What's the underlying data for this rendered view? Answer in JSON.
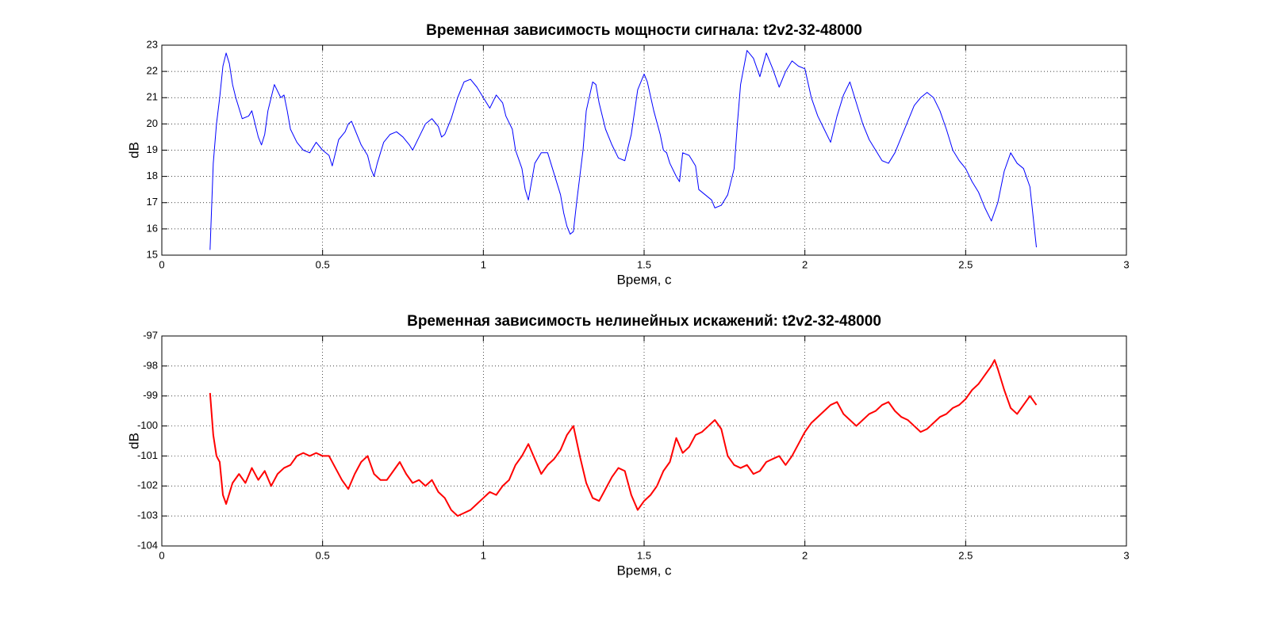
{
  "chart_data": [
    {
      "type": "line",
      "title": "Временная зависимость мощности сигнала: t2v2-32-48000",
      "xlabel": "Время, с",
      "ylabel": "dB",
      "color": "#0000ff",
      "grid": true,
      "xlim": [
        0,
        3
      ],
      "xticks": [
        0,
        0.5,
        1,
        1.5,
        2,
        2.5,
        3
      ],
      "ylim": [
        15,
        23
      ],
      "yticks": [
        15,
        16,
        17,
        18,
        19,
        20,
        21,
        22,
        23
      ],
      "x": [
        0.15,
        0.16,
        0.17,
        0.18,
        0.19,
        0.2,
        0.21,
        0.22,
        0.23,
        0.24,
        0.25,
        0.27,
        0.28,
        0.29,
        0.3,
        0.31,
        0.32,
        0.33,
        0.35,
        0.37,
        0.38,
        0.39,
        0.4,
        0.42,
        0.44,
        0.46,
        0.48,
        0.5,
        0.52,
        0.53,
        0.54,
        0.55,
        0.57,
        0.58,
        0.59,
        0.6,
        0.62,
        0.64,
        0.65,
        0.66,
        0.67,
        0.69,
        0.71,
        0.73,
        0.75,
        0.77,
        0.78,
        0.8,
        0.82,
        0.84,
        0.86,
        0.87,
        0.88,
        0.9,
        0.92,
        0.94,
        0.96,
        0.98,
        1.0,
        1.02,
        1.04,
        1.06,
        1.07,
        1.09,
        1.1,
        1.12,
        1.13,
        1.14,
        1.15,
        1.16,
        1.18,
        1.2,
        1.22,
        1.24,
        1.25,
        1.26,
        1.27,
        1.28,
        1.29,
        1.31,
        1.32,
        1.34,
        1.35,
        1.36,
        1.38,
        1.4,
        1.42,
        1.44,
        1.46,
        1.48,
        1.5,
        1.51,
        1.53,
        1.55,
        1.56,
        1.57,
        1.58,
        1.6,
        1.61,
        1.62,
        1.64,
        1.66,
        1.67,
        1.69,
        1.71,
        1.72,
        1.74,
        1.76,
        1.78,
        1.79,
        1.8,
        1.82,
        1.84,
        1.86,
        1.88,
        1.9,
        1.92,
        1.94,
        1.96,
        1.98,
        2.0,
        2.02,
        2.04,
        2.06,
        2.08,
        2.1,
        2.12,
        2.14,
        2.16,
        2.18,
        2.2,
        2.22,
        2.24,
        2.26,
        2.28,
        2.3,
        2.32,
        2.34,
        2.36,
        2.38,
        2.4,
        2.42,
        2.44,
        2.46,
        2.48,
        2.5,
        2.52,
        2.54,
        2.56,
        2.58,
        2.6,
        2.62,
        2.64,
        2.66,
        2.68,
        2.7,
        2.72
      ],
      "values": [
        15.2,
        18.5,
        20.0,
        21.0,
        22.2,
        22.7,
        22.3,
        21.5,
        21.0,
        20.6,
        20.2,
        20.3,
        20.5,
        20.0,
        19.5,
        19.2,
        19.6,
        20.5,
        21.5,
        21.0,
        21.1,
        20.5,
        19.8,
        19.3,
        19.0,
        18.9,
        19.3,
        19.0,
        18.8,
        18.4,
        18.9,
        19.4,
        19.7,
        20.0,
        20.1,
        19.8,
        19.2,
        18.8,
        18.3,
        18.0,
        18.5,
        19.3,
        19.6,
        19.7,
        19.5,
        19.2,
        19.0,
        19.5,
        20.0,
        20.2,
        19.9,
        19.5,
        19.6,
        20.2,
        21.0,
        21.6,
        21.7,
        21.4,
        21.0,
        20.6,
        21.1,
        20.8,
        20.3,
        19.8,
        19.0,
        18.3,
        17.5,
        17.1,
        17.8,
        18.5,
        18.9,
        18.9,
        18.1,
        17.3,
        16.6,
        16.1,
        15.8,
        15.9,
        17.0,
        19.0,
        20.5,
        21.6,
        21.5,
        20.8,
        19.8,
        19.2,
        18.7,
        18.6,
        19.6,
        21.3,
        21.9,
        21.6,
        20.5,
        19.6,
        19.0,
        18.9,
        18.5,
        18.0,
        17.8,
        18.9,
        18.8,
        18.4,
        17.5,
        17.3,
        17.1,
        16.8,
        16.9,
        17.3,
        18.3,
        20.0,
        21.5,
        22.8,
        22.5,
        21.8,
        22.7,
        22.1,
        21.4,
        22.0,
        22.4,
        22.2,
        22.1,
        21.0,
        20.3,
        19.8,
        19.3,
        20.3,
        21.1,
        21.6,
        20.8,
        20.0,
        19.4,
        19.0,
        18.6,
        18.5,
        18.9,
        19.5,
        20.1,
        20.7,
        21.0,
        21.2,
        21.0,
        20.5,
        19.8,
        19.0,
        18.6,
        18.3,
        17.8,
        17.4,
        16.8,
        16.3,
        17.0,
        18.2,
        18.9,
        18.5,
        18.3,
        17.6,
        15.3
      ]
    },
    {
      "type": "line",
      "title": "Временная зависимость нелинейных искажений: t2v2-32-48000",
      "xlabel": "Время, с",
      "ylabel": "dB",
      "color": "#ff0000",
      "grid": true,
      "xlim": [
        0,
        3
      ],
      "xticks": [
        0,
        0.5,
        1,
        1.5,
        2,
        2.5,
        3
      ],
      "ylim": [
        -104,
        -97
      ],
      "yticks": [
        -104,
        -103,
        -102,
        -101,
        -100,
        -99,
        -98,
        -97
      ],
      "x": [
        0.15,
        0.16,
        0.17,
        0.18,
        0.19,
        0.2,
        0.22,
        0.24,
        0.26,
        0.28,
        0.3,
        0.32,
        0.34,
        0.36,
        0.38,
        0.4,
        0.42,
        0.44,
        0.46,
        0.48,
        0.5,
        0.52,
        0.54,
        0.56,
        0.58,
        0.6,
        0.62,
        0.64,
        0.66,
        0.68,
        0.7,
        0.72,
        0.74,
        0.76,
        0.78,
        0.8,
        0.82,
        0.84,
        0.86,
        0.88,
        0.9,
        0.92,
        0.94,
        0.96,
        0.98,
        1.0,
        1.02,
        1.04,
        1.06,
        1.08,
        1.1,
        1.12,
        1.14,
        1.16,
        1.18,
        1.2,
        1.22,
        1.24,
        1.26,
        1.28,
        1.3,
        1.32,
        1.34,
        1.36,
        1.38,
        1.4,
        1.42,
        1.44,
        1.46,
        1.48,
        1.5,
        1.52,
        1.54,
        1.56,
        1.58,
        1.6,
        1.62,
        1.64,
        1.66,
        1.68,
        1.7,
        1.72,
        1.74,
        1.76,
        1.78,
        1.8,
        1.82,
        1.84,
        1.86,
        1.88,
        1.9,
        1.92,
        1.94,
        1.96,
        1.98,
        2.0,
        2.02,
        2.04,
        2.06,
        2.08,
        2.1,
        2.12,
        2.14,
        2.16,
        2.18,
        2.2,
        2.22,
        2.24,
        2.26,
        2.28,
        2.3,
        2.32,
        2.34,
        2.36,
        2.38,
        2.4,
        2.42,
        2.44,
        2.46,
        2.48,
        2.5,
        2.52,
        2.54,
        2.56,
        2.58,
        2.59,
        2.6,
        2.62,
        2.64,
        2.66,
        2.68,
        2.7,
        2.72
      ],
      "values": [
        -98.9,
        -100.3,
        -101.0,
        -101.2,
        -102.3,
        -102.6,
        -101.9,
        -101.6,
        -101.9,
        -101.4,
        -101.8,
        -101.5,
        -102.0,
        -101.6,
        -101.4,
        -101.3,
        -101.0,
        -100.9,
        -101.0,
        -100.9,
        -101.0,
        -101.0,
        -101.4,
        -101.8,
        -102.1,
        -101.6,
        -101.2,
        -101.0,
        -101.6,
        -101.8,
        -101.8,
        -101.5,
        -101.2,
        -101.6,
        -101.9,
        -101.8,
        -102.0,
        -101.8,
        -102.2,
        -102.4,
        -102.8,
        -103.0,
        -102.9,
        -102.8,
        -102.6,
        -102.4,
        -102.2,
        -102.3,
        -102.0,
        -101.8,
        -101.3,
        -101.0,
        -100.6,
        -101.1,
        -101.6,
        -101.3,
        -101.1,
        -100.8,
        -100.3,
        -100.0,
        -101.0,
        -101.9,
        -102.4,
        -102.5,
        -102.1,
        -101.7,
        -101.4,
        -101.5,
        -102.3,
        -102.8,
        -102.5,
        -102.3,
        -102.0,
        -101.5,
        -101.2,
        -100.4,
        -100.9,
        -100.7,
        -100.3,
        -100.2,
        -100.0,
        -99.8,
        -100.1,
        -101.0,
        -101.3,
        -101.4,
        -101.3,
        -101.6,
        -101.5,
        -101.2,
        -101.1,
        -101.0,
        -101.3,
        -101.0,
        -100.6,
        -100.2,
        -99.9,
        -99.7,
        -99.5,
        -99.3,
        -99.2,
        -99.6,
        -99.8,
        -100.0,
        -99.8,
        -99.6,
        -99.5,
        -99.3,
        -99.2,
        -99.5,
        -99.7,
        -99.8,
        -100.0,
        -100.2,
        -100.1,
        -99.9,
        -99.7,
        -99.6,
        -99.4,
        -99.3,
        -99.1,
        -98.8,
        -98.6,
        -98.3,
        -98.0,
        -97.8,
        -98.1,
        -98.8,
        -99.4,
        -99.6,
        -99.3,
        -99.0,
        -99.3
      ]
    }
  ]
}
